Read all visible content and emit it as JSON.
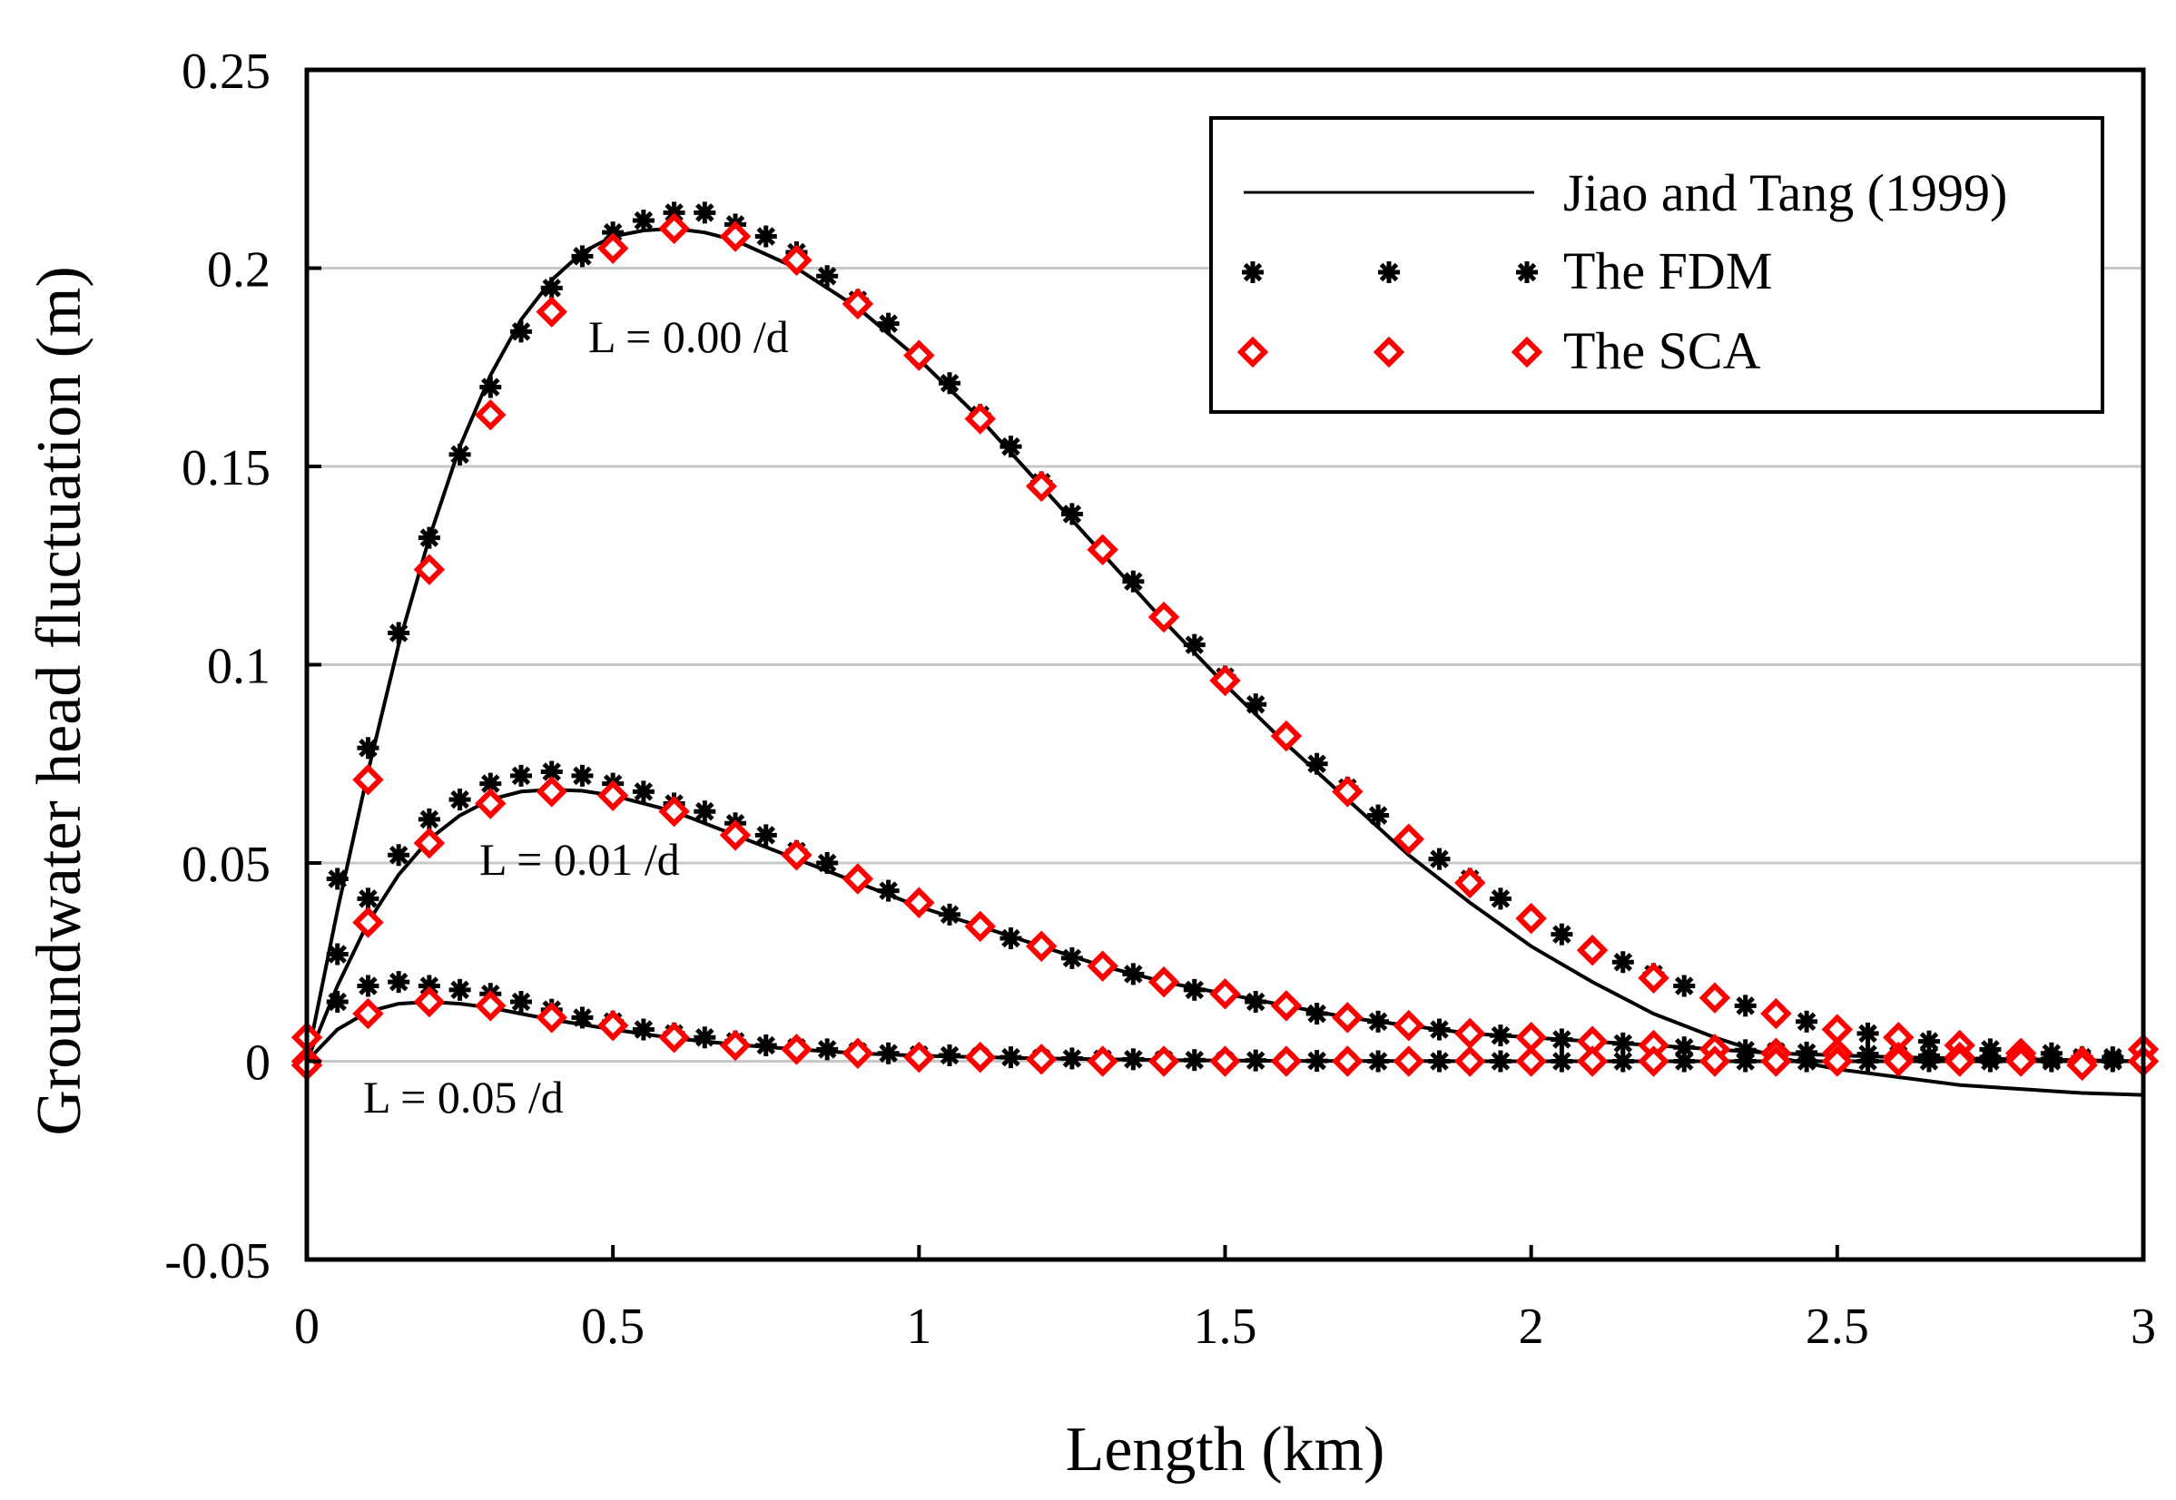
{
  "chart_data": {
    "type": "line",
    "title": "",
    "xlabel": "Length (km)",
    "ylabel": "Groundwater head fluctuation (m)",
    "xlim": [
      0,
      3
    ],
    "ylim": [
      -0.05,
      0.25
    ],
    "xticks": [
      0,
      0.5,
      1,
      1.5,
      2,
      2.5,
      3
    ],
    "xtick_labels": [
      "0",
      "0.5",
      "1",
      "1.5",
      "2",
      "2.5",
      "3"
    ],
    "yticks": [
      -0.05,
      0,
      0.05,
      0.1,
      0.15,
      0.2,
      0.25
    ],
    "ytick_labels": [
      "-0.05",
      "0",
      "0.05",
      "0.1",
      "0.15",
      "0.2",
      "0.25"
    ],
    "grid": "horizontal",
    "legend_position": "top-right",
    "legend": [
      "Jiao and Tang (1999)",
      "The FDM",
      "The SCA"
    ],
    "annotations": [
      "L = 0.00 /d",
      "L = 0.01 /d",
      "L = 0.05 /d"
    ],
    "colors": {
      "analytic": "#000000",
      "fdm": "#000000",
      "sca": "#ff0000",
      "grid": "#c8c8c8"
    },
    "series": [
      {
        "name": "Jiao and Tang (1999)",
        "leakance": "L = 0.00 /d",
        "x": [
          0,
          0.05,
          0.1,
          0.15,
          0.2,
          0.25,
          0.3,
          0.35,
          0.4,
          0.45,
          0.5,
          0.55,
          0.6,
          0.65,
          0.7,
          0.8,
          0.9,
          1.0,
          1.1,
          1.2,
          1.3,
          1.4,
          1.5,
          1.6,
          1.7,
          1.8,
          1.9,
          2.0,
          2.1,
          2.2,
          2.3,
          2.4,
          2.5,
          2.6,
          2.7,
          2.8,
          2.9,
          3.0
        ],
        "y": [
          0,
          0.038,
          0.073,
          0.105,
          0.132,
          0.155,
          0.173,
          0.187,
          0.197,
          0.204,
          0.208,
          0.2095,
          0.21,
          0.209,
          0.207,
          0.2,
          0.19,
          0.177,
          0.162,
          0.145,
          0.128,
          0.111,
          0.095,
          0.08,
          0.066,
          0.052,
          0.04,
          0.029,
          0.02,
          0.012,
          0.006,
          0.001,
          -0.002,
          -0.004,
          -0.006,
          -0.007,
          -0.008,
          -0.0085
        ]
      },
      {
        "name": "Jiao and Tang (1999)",
        "leakance": "L = 0.01 /d",
        "x": [
          0,
          0.05,
          0.1,
          0.15,
          0.2,
          0.25,
          0.3,
          0.35,
          0.4,
          0.45,
          0.5,
          0.6,
          0.7,
          0.8,
          0.9,
          1.0,
          1.1,
          1.2,
          1.3,
          1.4,
          1.5,
          1.6,
          1.7,
          1.8,
          1.9,
          2.0,
          2.1,
          2.2,
          2.4,
          2.6,
          2.8,
          3.0
        ],
        "y": [
          0,
          0.019,
          0.035,
          0.047,
          0.056,
          0.062,
          0.066,
          0.068,
          0.0685,
          0.0682,
          0.067,
          0.063,
          0.057,
          0.051,
          0.045,
          0.039,
          0.034,
          0.029,
          0.024,
          0.02,
          0.017,
          0.014,
          0.011,
          0.009,
          0.007,
          0.006,
          0.005,
          0.004,
          0.002,
          0.001,
          0.0005,
          0
        ]
      },
      {
        "name": "Jiao and Tang (1999)",
        "leakance": "L = 0.05 /d",
        "x": [
          0,
          0.05,
          0.1,
          0.15,
          0.2,
          0.25,
          0.3,
          0.35,
          0.4,
          0.5,
          0.6,
          0.7,
          0.8,
          0.9,
          1.0,
          1.2,
          1.4,
          1.6,
          1.8,
          2.0,
          2.5,
          3.0
        ],
        "y": [
          0,
          0.008,
          0.0125,
          0.0145,
          0.015,
          0.0145,
          0.0135,
          0.012,
          0.0105,
          0.008,
          0.0058,
          0.0042,
          0.003,
          0.002,
          0.0014,
          0.0007,
          0.0003,
          0.0001,
          5e-05,
          0,
          0,
          0
        ]
      },
      {
        "name": "The FDM",
        "leakance": "L = 0.00 /d",
        "x": [
          0,
          0.05,
          0.1,
          0.15,
          0.2,
          0.25,
          0.3,
          0.35,
          0.4,
          0.45,
          0.5,
          0.55,
          0.6,
          0.65,
          0.7,
          0.75,
          0.8,
          0.85,
          0.9,
          0.95,
          1.0,
          1.05,
          1.1,
          1.15,
          1.2,
          1.25,
          1.3,
          1.35,
          1.4,
          1.45,
          1.5,
          1.55,
          1.6,
          1.65,
          1.7,
          1.75,
          1.8,
          1.85,
          1.9,
          1.95,
          2.0,
          2.05,
          2.1,
          2.15,
          2.2,
          2.25,
          2.3,
          2.35,
          2.4,
          2.45,
          2.5,
          2.55,
          2.6,
          2.65,
          2.7,
          2.75,
          2.8,
          2.85,
          2.9,
          2.95,
          3.0
        ],
        "y": [
          0,
          0.046,
          0.079,
          0.108,
          0.132,
          0.153,
          0.17,
          0.184,
          0.195,
          0.203,
          0.209,
          0.212,
          0.214,
          0.214,
          0.211,
          0.208,
          0.204,
          0.198,
          0.192,
          0.186,
          0.178,
          0.171,
          0.163,
          0.155,
          0.146,
          0.138,
          0.129,
          0.121,
          0.112,
          0.105,
          0.097,
          0.09,
          0.082,
          0.075,
          0.069,
          0.062,
          0.056,
          0.051,
          0.046,
          0.041,
          0.036,
          0.032,
          0.028,
          0.025,
          0.022,
          0.019,
          0.016,
          0.014,
          0.012,
          0.01,
          0.008,
          0.007,
          0.006,
          0.005,
          0.004,
          0.003,
          0.002,
          0.002,
          0.001,
          0.001,
          0
        ]
      },
      {
        "name": "The FDM",
        "leakance": "L = 0.01 /d",
        "x": [
          0,
          0.05,
          0.1,
          0.15,
          0.2,
          0.25,
          0.3,
          0.35,
          0.4,
          0.45,
          0.5,
          0.55,
          0.6,
          0.65,
          0.7,
          0.75,
          0.8,
          0.85,
          0.9,
          0.95,
          1.0,
          1.05,
          1.1,
          1.15,
          1.2,
          1.25,
          1.3,
          1.35,
          1.4,
          1.45,
          1.5,
          1.55,
          1.6,
          1.65,
          1.7,
          1.75,
          1.8,
          1.85,
          1.9,
          1.95,
          2.0,
          2.05,
          2.1,
          2.15,
          2.2,
          2.25,
          2.3,
          2.35,
          2.4,
          2.45,
          2.5,
          2.55,
          2.6,
          2.65,
          2.7,
          2.75,
          2.8,
          2.85,
          2.9,
          2.95,
          3.0
        ],
        "y": [
          0,
          0.027,
          0.041,
          0.052,
          0.061,
          0.066,
          0.07,
          0.072,
          0.073,
          0.072,
          0.07,
          0.068,
          0.065,
          0.063,
          0.06,
          0.057,
          0.053,
          0.05,
          0.046,
          0.043,
          0.04,
          0.037,
          0.034,
          0.031,
          0.029,
          0.026,
          0.024,
          0.022,
          0.02,
          0.018,
          0.017,
          0.015,
          0.014,
          0.012,
          0.011,
          0.01,
          0.009,
          0.008,
          0.007,
          0.0065,
          0.006,
          0.0055,
          0.005,
          0.0045,
          0.004,
          0.0035,
          0.003,
          0.0028,
          0.0025,
          0.0022,
          0.002,
          0.0018,
          0.0016,
          0.0014,
          0.0012,
          0.001,
          0.0008,
          0.0006,
          0.0005,
          0.0003,
          0.0002
        ]
      },
      {
        "name": "The FDM",
        "leakance": "L = 0.05 /d",
        "x": [
          0,
          0.05,
          0.1,
          0.15,
          0.2,
          0.25,
          0.3,
          0.35,
          0.4,
          0.45,
          0.5,
          0.55,
          0.6,
          0.65,
          0.7,
          0.75,
          0.8,
          0.85,
          0.9,
          0.95,
          1.0,
          1.05,
          1.1,
          1.15,
          1.2,
          1.25,
          1.3,
          1.35,
          1.4,
          1.45,
          1.5,
          1.55,
          1.6,
          1.65,
          1.7,
          1.75,
          1.8,
          1.85,
          1.9,
          1.95,
          2.0,
          2.05,
          2.1,
          2.15,
          2.2,
          2.25,
          2.3,
          2.35,
          2.4,
          2.45,
          2.5,
          2.55,
          2.6,
          2.65,
          2.7,
          2.75,
          2.8,
          2.85,
          2.9,
          2.95,
          3.0
        ],
        "y": [
          0,
          0.015,
          0.019,
          0.02,
          0.019,
          0.018,
          0.017,
          0.015,
          0.013,
          0.011,
          0.01,
          0.008,
          0.007,
          0.006,
          0.005,
          0.004,
          0.0035,
          0.003,
          0.0025,
          0.002,
          0.0017,
          0.0015,
          0.0012,
          0.001,
          0.0008,
          0.0007,
          0.0006,
          0.0005,
          0.0004,
          0.0003,
          0.0002,
          0.0002,
          0.0001,
          0.0001,
          0.0001,
          0,
          0,
          0,
          0,
          0,
          0,
          0,
          0,
          0,
          0,
          0,
          0,
          0,
          0,
          0,
          0,
          0,
          0,
          0,
          0,
          0,
          0,
          0,
          0,
          0,
          0
        ]
      },
      {
        "name": "The SCA",
        "leakance": "L = 0.00 /d",
        "x": [
          0,
          0.1,
          0.2,
          0.3,
          0.4,
          0.5,
          0.6,
          0.7,
          0.8,
          0.9,
          1.0,
          1.1,
          1.2,
          1.3,
          1.4,
          1.5,
          1.6,
          1.7,
          1.8,
          1.9,
          2.0,
          2.1,
          2.2,
          2.3,
          2.4,
          2.5,
          2.6,
          2.7,
          2.8,
          2.9,
          3.0
        ],
        "y": [
          0.006,
          0.071,
          0.124,
          0.163,
          0.189,
          0.205,
          0.21,
          0.208,
          0.202,
          0.191,
          0.178,
          0.162,
          0.145,
          0.129,
          0.112,
          0.096,
          0.082,
          0.068,
          0.056,
          0.045,
          0.036,
          0.028,
          0.021,
          0.016,
          0.012,
          0.008,
          0.006,
          0.004,
          0.002,
          0,
          0.003
        ]
      },
      {
        "name": "The SCA",
        "leakance": "L = 0.01 /d",
        "x": [
          0,
          0.1,
          0.2,
          0.3,
          0.4,
          0.5,
          0.6,
          0.7,
          0.8,
          0.9,
          1.0,
          1.1,
          1.2,
          1.3,
          1.4,
          1.5,
          1.6,
          1.7,
          1.8,
          1.9,
          2.0,
          2.1,
          2.2,
          2.3,
          2.4,
          2.5,
          2.6,
          2.7,
          2.8,
          2.9,
          3.0
        ],
        "y": [
          0,
          0.035,
          0.055,
          0.065,
          0.068,
          0.067,
          0.063,
          0.057,
          0.052,
          0.046,
          0.04,
          0.034,
          0.029,
          0.024,
          0.02,
          0.017,
          0.014,
          0.011,
          0.009,
          0.007,
          0.006,
          0.005,
          0.004,
          0.003,
          0.002,
          0.002,
          0.001,
          0.001,
          0.001,
          0,
          0
        ]
      },
      {
        "name": "The SCA",
        "leakance": "L = 0.05 /d",
        "x": [
          0,
          0.1,
          0.2,
          0.3,
          0.4,
          0.5,
          0.6,
          0.7,
          0.8,
          0.9,
          1.0,
          1.1,
          1.2,
          1.3,
          1.4,
          1.5,
          1.6,
          1.7,
          1.8,
          1.9,
          2.0,
          2.1,
          2.2,
          2.3,
          2.4,
          2.5,
          2.6,
          2.7,
          2.8,
          2.9,
          3.0
        ],
        "y": [
          -0.001,
          0.012,
          0.015,
          0.014,
          0.011,
          0.009,
          0.006,
          0.004,
          0.003,
          0.002,
          0.001,
          0.001,
          0.0005,
          0,
          0,
          0,
          0,
          0,
          0,
          0,
          0,
          0,
          0,
          0,
          0,
          0,
          0,
          0,
          0,
          -0.001,
          0
        ]
      }
    ]
  }
}
